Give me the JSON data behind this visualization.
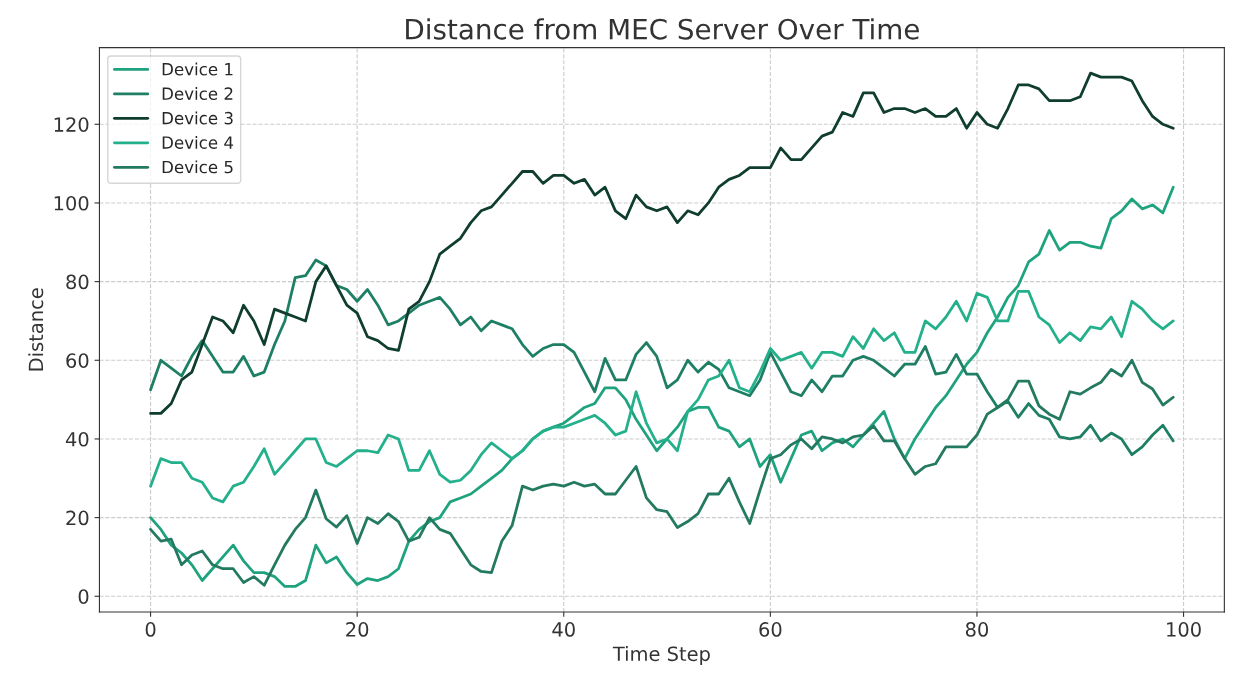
{
  "chart_data": {
    "type": "line",
    "title": "Distance from MEC Server Over Time",
    "xlabel": "Time Step",
    "ylabel": "Distance",
    "x": [
      0,
      1,
      2,
      3,
      4,
      5,
      6,
      7,
      8,
      9,
      10,
      11,
      12,
      13,
      14,
      15,
      16,
      17,
      18,
      19,
      20,
      21,
      22,
      23,
      24,
      25,
      26,
      27,
      28,
      29,
      30,
      31,
      32,
      33,
      34,
      35,
      36,
      37,
      38,
      39,
      40,
      41,
      42,
      43,
      44,
      45,
      46,
      47,
      48,
      49,
      50,
      51,
      52,
      53,
      54,
      55,
      56,
      57,
      58,
      59,
      60,
      61,
      62,
      63,
      64,
      65,
      66,
      67,
      68,
      69,
      70,
      71,
      72,
      73,
      74,
      75,
      76,
      77,
      78,
      79,
      80,
      81,
      82,
      83,
      84,
      85,
      86,
      87,
      88,
      89,
      90,
      91,
      92,
      93,
      94,
      95,
      96,
      97,
      98,
      99
    ],
    "series": [
      {
        "name": "Device 1",
        "color": "#1fa37e",
        "values": [
          20,
          17,
          13,
          11,
          8,
          4,
          7,
          10,
          13,
          9,
          6,
          6,
          5,
          2.5,
          2.5,
          4,
          13,
          8.5,
          10,
          6,
          3,
          4.5,
          4,
          5,
          7,
          14,
          17,
          19,
          20,
          24,
          25,
          26,
          28,
          30,
          32,
          35,
          37,
          40,
          42,
          43,
          44,
          46,
          48,
          49,
          53,
          53,
          50,
          45,
          41,
          37,
          40,
          43,
          47,
          48,
          48,
          43,
          42,
          38,
          40,
          33,
          36,
          29,
          35,
          41,
          42,
          37,
          39,
          40,
          38,
          41,
          44,
          47,
          40,
          35,
          40,
          44,
          48,
          51,
          55,
          59,
          62,
          67,
          71,
          76,
          79,
          85,
          87,
          93,
          88,
          90,
          90,
          89,
          88.5,
          96,
          98,
          101,
          98.5,
          99.5,
          97.5,
          104
        ]
      },
      {
        "name": "Device 2",
        "color": "#1e7f64",
        "values": [
          52.5,
          60,
          58,
          56,
          61,
          65,
          61,
          57,
          57,
          61,
          56,
          57,
          64,
          70,
          81,
          81.5,
          85.5,
          84,
          79,
          78,
          75,
          78,
          74,
          69,
          70,
          72,
          74,
          75,
          76,
          73,
          69,
          71,
          67.5,
          70,
          69,
          68,
          64,
          61,
          63,
          64,
          64,
          62,
          57,
          52,
          60.5,
          55,
          55,
          61.5,
          64.5,
          61,
          53,
          55,
          60,
          57,
          59.5,
          57.7,
          53,
          52,
          51,
          55,
          62,
          57,
          52,
          51,
          55,
          52,
          56,
          56,
          60,
          61,
          60,
          58,
          56,
          59,
          59,
          63.5,
          56.5,
          57,
          61.5,
          56.5,
          56.5,
          52,
          48,
          49.6,
          45.5,
          49,
          46,
          45,
          40.5,
          40,
          40.5,
          43.5,
          39.5,
          41.5,
          40,
          36,
          38,
          41,
          43.5,
          39.5
        ]
      },
      {
        "name": "Device 3",
        "color": "#0f3d2e",
        "values": [
          46.5,
          46.5,
          49,
          55,
          57,
          64,
          71,
          70,
          67,
          74,
          70,
          64,
          73,
          72,
          71,
          70,
          80,
          84,
          79,
          74,
          72,
          66,
          65,
          63,
          62.5,
          73,
          75,
          80,
          87,
          89,
          91,
          95,
          98,
          99,
          102,
          105,
          108,
          108,
          105,
          107,
          107,
          105,
          106,
          102,
          104,
          98,
          96,
          102,
          99,
          98,
          99,
          95,
          98,
          97,
          100,
          104,
          106,
          107,
          109,
          109,
          109,
          114,
          111,
          111,
          114,
          117,
          118,
          123,
          122,
          128,
          128,
          123,
          124,
          124,
          123,
          124,
          122,
          122,
          124,
          119,
          123,
          120,
          119,
          124,
          130,
          130,
          129,
          126,
          126,
          126,
          127,
          133,
          132,
          132,
          132,
          131,
          126,
          122,
          120,
          119
        ]
      },
      {
        "name": "Device 4",
        "color": "#23b08b",
        "values": [
          28,
          35,
          34,
          34,
          30,
          29,
          25,
          24,
          28,
          29,
          33,
          37.5,
          31,
          34,
          37,
          40,
          40,
          34,
          33,
          35,
          37,
          37,
          36.5,
          41,
          40,
          32,
          32,
          37,
          31,
          29,
          29.5,
          32,
          36,
          39,
          37,
          35,
          37,
          40,
          42,
          43,
          43,
          44,
          45,
          46,
          44,
          41,
          42,
          52,
          44,
          39,
          40,
          37,
          47,
          50,
          55,
          56,
          60,
          53,
          52,
          57,
          63,
          60,
          61,
          62,
          58,
          62,
          62,
          61,
          66,
          63,
          68,
          65,
          67,
          62,
          62,
          70,
          68,
          71,
          75,
          70,
          77,
          76,
          70,
          70,
          77.5,
          77.5,
          71,
          69,
          64.5,
          67,
          65,
          68.5,
          68,
          71,
          66,
          75,
          73,
          70,
          68,
          70
        ]
      },
      {
        "name": "Device 5",
        "color": "#237a60",
        "values": [
          17,
          14,
          14.5,
          8,
          10.5,
          11.5,
          8,
          7,
          7,
          3.5,
          5,
          2.8,
          8,
          13,
          17,
          20,
          27,
          19.7,
          17.6,
          20.5,
          13.4,
          20,
          18.5,
          21,
          19,
          14,
          15,
          20,
          17,
          16,
          12,
          8,
          6.3,
          6,
          14,
          18,
          28,
          27,
          28,
          28.5,
          28,
          29,
          28,
          28.5,
          26,
          26,
          29.5,
          33,
          25,
          22,
          21.5,
          17.5,
          19,
          21,
          26,
          26,
          30,
          24,
          18.5,
          27,
          35,
          36,
          38.5,
          40,
          37.5,
          40.5,
          40,
          39,
          40.5,
          41,
          43.3,
          39.5,
          39.5,
          35,
          31,
          33,
          33.7,
          38,
          38,
          38,
          41,
          46.3,
          48,
          50,
          54.7,
          54.7,
          48.4,
          46.3,
          45,
          52,
          51.4,
          53,
          54.4,
          57.7,
          56,
          60,
          54.4,
          52.7,
          48.6,
          50.6
        ]
      }
    ],
    "xlim": [
      -4.95,
      103.95
    ],
    "ylim": [
      -4,
      139.5
    ],
    "xticks": [
      0,
      20,
      40,
      60,
      80,
      100
    ],
    "yticks": [
      0,
      20,
      40,
      60,
      80,
      100,
      120
    ],
    "grid": true,
    "legend": "top left",
    "line_style": "solid",
    "marker": "none"
  }
}
